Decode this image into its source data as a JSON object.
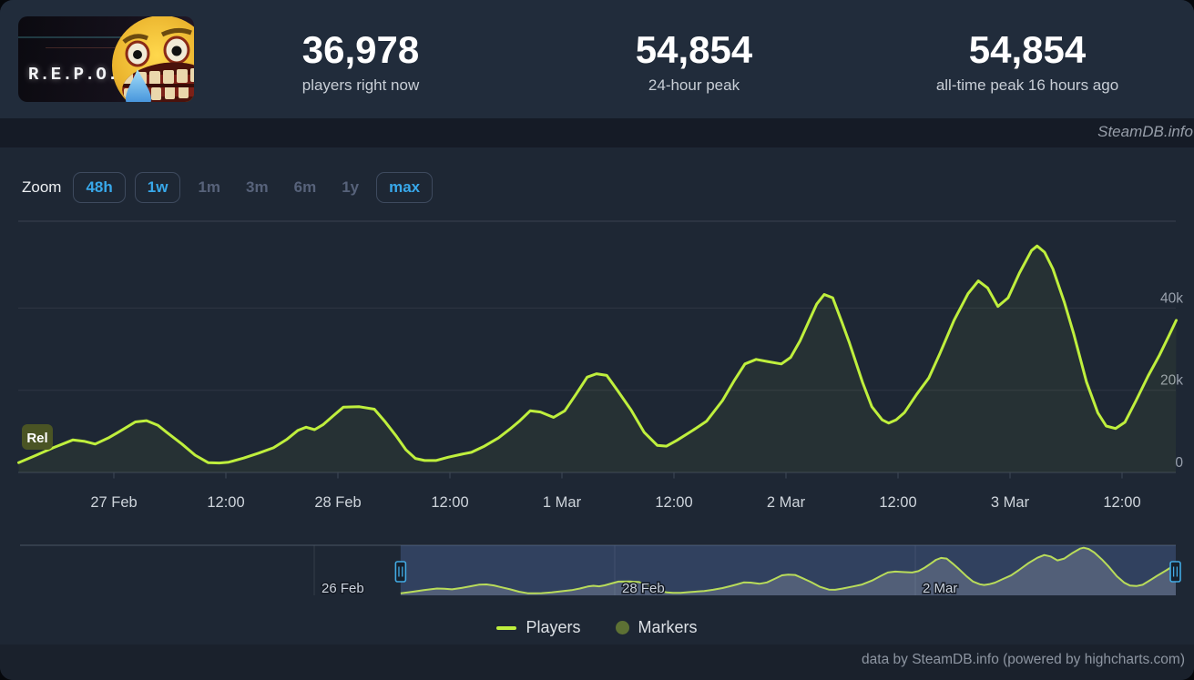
{
  "header": {
    "game_title": "R.E.P.O.",
    "stats": [
      {
        "value": "36,978",
        "caption": "players right now"
      },
      {
        "value": "54,854",
        "caption": "24-hour peak"
      },
      {
        "value": "54,854",
        "caption": "all-time peak 16 hours ago"
      }
    ]
  },
  "watermark": "SteamDB.info",
  "zoom_controls": {
    "label": "Zoom",
    "options": [
      {
        "label": "48h",
        "state": "enabled"
      },
      {
        "label": "1w",
        "state": "enabled"
      },
      {
        "label": "1m",
        "state": "disabled"
      },
      {
        "label": "3m",
        "state": "disabled"
      },
      {
        "label": "6m",
        "state": "disabled"
      },
      {
        "label": "1y",
        "state": "disabled"
      },
      {
        "label": "max",
        "state": "enabled"
      }
    ]
  },
  "legend": [
    {
      "name": "Players",
      "swatch": "line",
      "color": "#bfef3d"
    },
    {
      "name": "Markers",
      "swatch": "circle",
      "color": "#5d7134"
    }
  ],
  "credit": "data by SteamDB.info (powered by highcharts.com)",
  "chart_data": {
    "type": "line",
    "title": "",
    "xlabel": "",
    "ylabel": "",
    "x_unit": "hours since 26 Feb 00:00",
    "y_unit": "players (thousands)",
    "ylim": [
      0,
      61
    ],
    "grid": "horizontal",
    "x_ticks": [
      {
        "t": 24,
        "label": "27 Feb"
      },
      {
        "t": 36,
        "label": "12:00"
      },
      {
        "t": 48,
        "label": "28 Feb"
      },
      {
        "t": 60,
        "label": "12:00"
      },
      {
        "t": 72,
        "label": "1 Mar"
      },
      {
        "t": 84,
        "label": "12:00"
      },
      {
        "t": 96,
        "label": "2 Mar"
      },
      {
        "t": 108,
        "label": "12:00"
      },
      {
        "t": 120,
        "label": "3 Mar"
      },
      {
        "t": 132,
        "label": "12:00"
      }
    ],
    "y_ticks": [
      {
        "value": 0,
        "label": "0"
      },
      {
        "value": 20,
        "label": "20k"
      },
      {
        "value": 40,
        "label": "40k"
      }
    ],
    "markers": [
      {
        "label": "Rel",
        "t": 13.8,
        "value": 2.4
      }
    ],
    "series": [
      {
        "name": "Players",
        "color": "#bfef3d",
        "points": [
          [
            13.8,
            2.4
          ],
          [
            15.5,
            4.0
          ],
          [
            17.5,
            6.0
          ],
          [
            19.6,
            7.9
          ],
          [
            20.8,
            7.6
          ],
          [
            22,
            6.9
          ],
          [
            23.5,
            8.5
          ],
          [
            25,
            10.5
          ],
          [
            26.3,
            12.3
          ],
          [
            27.5,
            12.6
          ],
          [
            28.7,
            11.5
          ],
          [
            29.7,
            9.7
          ],
          [
            31.3,
            6.9
          ],
          [
            32.7,
            4.2
          ],
          [
            34.1,
            2.4
          ],
          [
            35.3,
            2.3
          ],
          [
            36.3,
            2.5
          ],
          [
            37.9,
            3.5
          ],
          [
            39.5,
            4.7
          ],
          [
            41.1,
            6.0
          ],
          [
            42.5,
            8.0
          ],
          [
            43.7,
            10.2
          ],
          [
            44.6,
            11.0
          ],
          [
            45.5,
            10.4
          ],
          [
            46.4,
            11.6
          ],
          [
            47.5,
            13.8
          ],
          [
            48.6,
            15.9
          ],
          [
            50.3,
            16.0
          ],
          [
            51.9,
            15.4
          ],
          [
            53,
            12.5
          ],
          [
            54.2,
            9.0
          ],
          [
            55.3,
            5.5
          ],
          [
            56.3,
            3.4
          ],
          [
            57.3,
            2.9
          ],
          [
            58.5,
            2.9
          ],
          [
            59.8,
            3.7
          ],
          [
            61.2,
            4.4
          ],
          [
            62.3,
            4.9
          ],
          [
            63.7,
            6.4
          ],
          [
            65.2,
            8.4
          ],
          [
            66.4,
            10.5
          ],
          [
            67.5,
            12.6
          ],
          [
            68.6,
            15.0
          ],
          [
            69.7,
            14.7
          ],
          [
            71.1,
            13.4
          ],
          [
            72.3,
            15.0
          ],
          [
            73.5,
            19.0
          ],
          [
            74.7,
            23.2
          ],
          [
            75.7,
            24.0
          ],
          [
            76.8,
            23.6
          ],
          [
            78,
            19.8
          ],
          [
            79.4,
            15.2
          ],
          [
            80.8,
            9.8
          ],
          [
            82.2,
            6.6
          ],
          [
            83.2,
            6.4
          ],
          [
            84.3,
            7.8
          ],
          [
            86,
            10.2
          ],
          [
            87.5,
            12.5
          ],
          [
            89.2,
            17.5
          ],
          [
            90.5,
            22.5
          ],
          [
            91.6,
            26.4
          ],
          [
            92.8,
            27.5
          ],
          [
            94,
            27.0
          ],
          [
            95.5,
            26.4
          ],
          [
            96.5,
            28.0
          ],
          [
            97.5,
            32.0
          ],
          [
            98.5,
            37.0
          ],
          [
            99.3,
            41.0
          ],
          [
            100.1,
            43.3
          ],
          [
            101,
            42.5
          ],
          [
            102,
            36.5
          ],
          [
            102.8,
            31.5
          ],
          [
            104.2,
            21.9
          ],
          [
            105.2,
            16.0
          ],
          [
            106.3,
            12.8
          ],
          [
            107,
            12.0
          ],
          [
            107.8,
            12.8
          ],
          [
            108.7,
            14.6
          ],
          [
            110,
            19.0
          ],
          [
            111.3,
            23.0
          ],
          [
            112.5,
            29.0
          ],
          [
            114,
            37.0
          ],
          [
            115.5,
            43.5
          ],
          [
            116.6,
            46.6
          ],
          [
            117.6,
            44.9
          ],
          [
            118.7,
            40.4
          ],
          [
            119.8,
            42.5
          ],
          [
            121,
            48.5
          ],
          [
            122.3,
            54.0
          ],
          [
            122.9,
            55.1
          ],
          [
            123.7,
            53.6
          ],
          [
            124.6,
            49.5
          ],
          [
            125.8,
            41.5
          ],
          [
            126.8,
            33.9
          ],
          [
            128.2,
            22.0
          ],
          [
            129.4,
            14.5
          ],
          [
            130.3,
            11.3
          ],
          [
            131.3,
            10.7
          ],
          [
            132.3,
            12.2
          ],
          [
            133.5,
            17.5
          ],
          [
            134.8,
            23.5
          ],
          [
            136,
            28.5
          ],
          [
            137,
            33.2
          ],
          [
            137.8,
            37.0
          ]
        ]
      }
    ],
    "navigator": {
      "x_ticks": [
        {
          "t": 0,
          "label": "26 Feb"
        },
        {
          "t": 48,
          "label": "28 Feb"
        },
        {
          "t": 96,
          "label": "2 Mar"
        }
      ],
      "selection": [
        13.8,
        137.8
      ],
      "range": [
        -47,
        137.8
      ]
    }
  }
}
